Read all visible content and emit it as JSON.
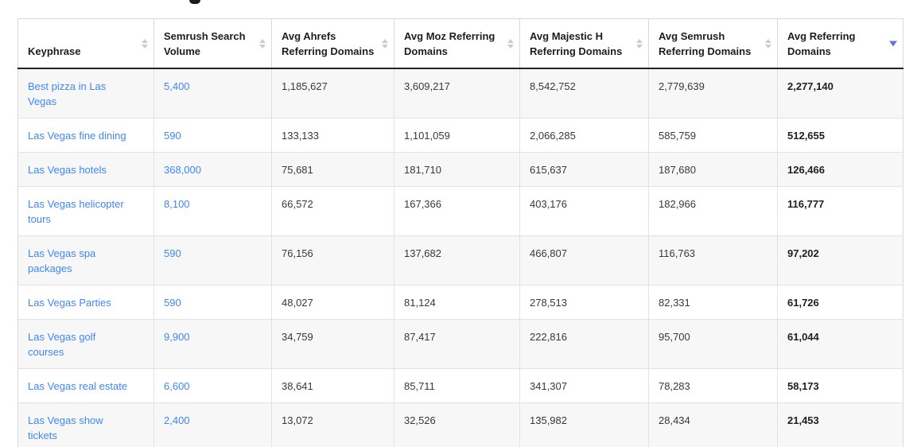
{
  "accent_colors": {
    "link_blue": "#3f87f5",
    "active_sort_caret": "#6674d9",
    "inactive_sort_caret": "#c9ccd3",
    "zebra_row": "#f7f7f8",
    "header_rule": "#222222"
  },
  "table": {
    "columns": [
      {
        "key": "keyphrase",
        "label": "Keyphrase",
        "sort": "none"
      },
      {
        "key": "semrush-search-volume",
        "label": "Semrush Search Volume",
        "sort": "none"
      },
      {
        "key": "avg-ahrefs",
        "label": "Avg Ahrefs Referring Domains",
        "sort": "none"
      },
      {
        "key": "avg-moz",
        "label": "Avg Moz Referring Domains",
        "sort": "none"
      },
      {
        "key": "avg-majestic-h",
        "label": "Avg Majestic H Referring Domains",
        "sort": "none"
      },
      {
        "key": "avg-semrush",
        "label": "Avg Semrush Referring Domains",
        "sort": "none"
      },
      {
        "key": "avg-referring",
        "label": "Avg Referring Domains",
        "sort": "desc"
      }
    ],
    "rows": [
      {
        "keyphrase": "Best pizza in Las Vegas",
        "search_volume": "5,400",
        "avg_ahrefs": "1,185,627",
        "avg_moz": "3,609,217",
        "avg_majestic_h": "8,542,752",
        "avg_semrush": "2,779,639",
        "avg_referring": "2,277,140"
      },
      {
        "keyphrase": "Las Vegas fine dining",
        "search_volume": "590",
        "avg_ahrefs": "133,133",
        "avg_moz": "1,101,059",
        "avg_majestic_h": "2,066,285",
        "avg_semrush": "585,759",
        "avg_referring": "512,655"
      },
      {
        "keyphrase": "Las Vegas hotels",
        "search_volume": "368,000",
        "avg_ahrefs": "75,681",
        "avg_moz": "181,710",
        "avg_majestic_h": "615,637",
        "avg_semrush": "187,680",
        "avg_referring": "126,466"
      },
      {
        "keyphrase": "Las Vegas helicopter tours",
        "search_volume": "8,100",
        "avg_ahrefs": "66,572",
        "avg_moz": "167,366",
        "avg_majestic_h": "403,176",
        "avg_semrush": "182,966",
        "avg_referring": "116,777"
      },
      {
        "keyphrase": "Las Vegas spa packages",
        "search_volume": "590",
        "avg_ahrefs": "76,156",
        "avg_moz": "137,682",
        "avg_majestic_h": "466,807",
        "avg_semrush": "116,763",
        "avg_referring": "97,202"
      },
      {
        "keyphrase": "Las Vegas Parties",
        "search_volume": "590",
        "avg_ahrefs": "48,027",
        "avg_moz": "81,124",
        "avg_majestic_h": "278,513",
        "avg_semrush": "82,331",
        "avg_referring": "61,726"
      },
      {
        "keyphrase": "Las Vegas golf courses",
        "search_volume": "9,900",
        "avg_ahrefs": "34,759",
        "avg_moz": "87,417",
        "avg_majestic_h": "222,816",
        "avg_semrush": "95,700",
        "avg_referring": "61,044"
      },
      {
        "keyphrase": "Las Vegas real estate",
        "search_volume": "6,600",
        "avg_ahrefs": "38,641",
        "avg_moz": "85,711",
        "avg_majestic_h": "341,307",
        "avg_semrush": "78,283",
        "avg_referring": "58,173"
      },
      {
        "keyphrase": "Las Vegas show tickets",
        "search_volume": "2,400",
        "avg_ahrefs": "13,072",
        "avg_moz": "32,526",
        "avg_majestic_h": "135,982",
        "avg_semrush": "28,434",
        "avg_referring": "21,453"
      }
    ]
  }
}
